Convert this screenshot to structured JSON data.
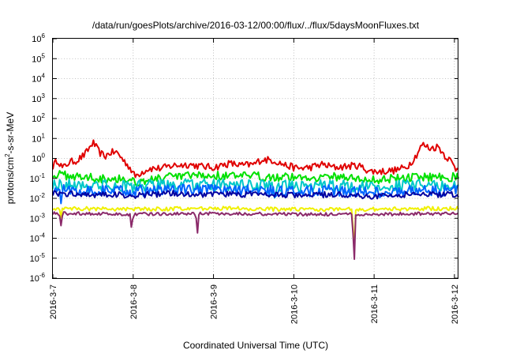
{
  "chart_data": {
    "type": "line",
    "title": "/data/run/goesPlots/archive/2016-03-12/00:00/flux/../flux/5daysMoonFluxes.txt",
    "xlabel": "Coordinated Universal Time (UTC)",
    "ylabel_parts": [
      "protons/cm",
      "2",
      "-s-sr-MeV"
    ],
    "y_scale": "log",
    "y_exp_range": [
      -6,
      6
    ],
    "y_ticks": [
      {
        "base": "10",
        "exp": "-6",
        "v": -6
      },
      {
        "base": "10",
        "exp": "-5",
        "v": -5
      },
      {
        "base": "10",
        "exp": "-4",
        "v": -4
      },
      {
        "base": "10",
        "exp": "-3",
        "v": -3
      },
      {
        "base": "10",
        "exp": "-2",
        "v": -2
      },
      {
        "base": "10",
        "exp": "-1",
        "v": -1
      },
      {
        "base": "10",
        "exp": "0",
        "v": 0
      },
      {
        "base": "10",
        "exp": "1",
        "v": 1
      },
      {
        "base": "10",
        "exp": "2",
        "v": 2
      },
      {
        "base": "10",
        "exp": "3",
        "v": 3
      },
      {
        "base": "10",
        "exp": "4",
        "v": 4
      },
      {
        "base": "10",
        "exp": "5",
        "v": 5
      },
      {
        "base": "10",
        "exp": "6",
        "v": 6
      }
    ],
    "x_ticks": [
      {
        "label": "2016-3-7",
        "day": 0
      },
      {
        "label": "2016-3-8",
        "day": 1
      },
      {
        "label": "2016-3-9",
        "day": 2
      },
      {
        "label": "2016-3-10",
        "day": 3
      },
      {
        "label": "2016-3-11",
        "day": 4
      },
      {
        "label": "2016-3-12",
        "day": 5
      }
    ],
    "x_range_days": [
      0,
      5.05
    ],
    "grid": true,
    "series": [
      {
        "color": "#e00000",
        "stroke": 2,
        "anchors": [
          [
            0,
            -0.4
          ],
          [
            0.06,
            -0.05
          ],
          [
            0.12,
            -0.5
          ],
          [
            0.2,
            -0.2
          ],
          [
            0.3,
            -0.1
          ],
          [
            0.4,
            0.2
          ],
          [
            0.5,
            0.8
          ],
          [
            0.58,
            0.3
          ],
          [
            0.65,
            0.1
          ],
          [
            0.72,
            0.3
          ],
          [
            0.8,
            0.3
          ],
          [
            0.88,
            -0.1
          ],
          [
            0.95,
            -0.4
          ],
          [
            1.02,
            -0.9
          ],
          [
            1.1,
            -0.7
          ],
          [
            1.2,
            -0.5
          ],
          [
            1.35,
            -0.5
          ],
          [
            1.5,
            -0.35
          ],
          [
            1.7,
            -0.3
          ],
          [
            1.85,
            -0.4
          ],
          [
            2.0,
            -0.45
          ],
          [
            2.2,
            -0.25
          ],
          [
            2.35,
            -0.35
          ],
          [
            2.5,
            -0.3
          ],
          [
            2.6,
            -0.05
          ],
          [
            2.75,
            -0.1
          ],
          [
            2.9,
            -0.35
          ],
          [
            3.05,
            -0.5
          ],
          [
            3.2,
            -0.45
          ],
          [
            3.35,
            -0.3
          ],
          [
            3.5,
            -0.45
          ],
          [
            3.65,
            -0.4
          ],
          [
            3.8,
            -0.35
          ],
          [
            3.95,
            -0.65
          ],
          [
            4.1,
            -0.65
          ],
          [
            4.25,
            -0.6
          ],
          [
            4.4,
            -0.45
          ],
          [
            4.5,
            0.0
          ],
          [
            4.6,
            0.7
          ],
          [
            4.7,
            0.5
          ],
          [
            4.8,
            0.6
          ],
          [
            4.88,
            0.15
          ],
          [
            4.95,
            -0.1
          ],
          [
            5.02,
            -0.55
          ],
          [
            5.05,
            -0.4
          ]
        ],
        "noise": 0.18,
        "dips": []
      },
      {
        "color": "#00e000",
        "stroke": 2,
        "anchors": [
          [
            0,
            -0.8
          ],
          [
            0.3,
            -0.9
          ],
          [
            0.6,
            -1.0
          ],
          [
            0.9,
            -1.0
          ],
          [
            1.05,
            -1.2
          ],
          [
            1.3,
            -1.0
          ],
          [
            1.6,
            -0.9
          ],
          [
            2.0,
            -0.85
          ],
          [
            2.4,
            -0.9
          ],
          [
            2.7,
            -0.9
          ],
          [
            3.0,
            -0.95
          ],
          [
            3.3,
            -0.95
          ],
          [
            3.6,
            -0.9
          ],
          [
            3.9,
            -1.1
          ],
          [
            4.2,
            -1.0
          ],
          [
            4.5,
            -0.95
          ],
          [
            4.8,
            -0.9
          ],
          [
            5.05,
            -0.95
          ]
        ],
        "noise": 0.22,
        "dips": []
      },
      {
        "color": "#00c8c8",
        "stroke": 2,
        "anchors": [
          [
            0,
            -1.3
          ],
          [
            0.5,
            -1.35
          ],
          [
            1.0,
            -1.4
          ],
          [
            1.5,
            -1.3
          ],
          [
            2.0,
            -1.35
          ],
          [
            2.5,
            -1.35
          ],
          [
            3.0,
            -1.4
          ],
          [
            3.5,
            -1.35
          ],
          [
            4.0,
            -1.45
          ],
          [
            4.5,
            -1.35
          ],
          [
            5.05,
            -1.35
          ]
        ],
        "noise": 0.3,
        "dips": [
          [
            2.76,
            -2.0
          ]
        ]
      },
      {
        "color": "#0064ff",
        "stroke": 2,
        "anchors": [
          [
            0,
            -1.55
          ],
          [
            0.5,
            -1.6
          ],
          [
            1.0,
            -1.65
          ],
          [
            1.5,
            -1.55
          ],
          [
            2.0,
            -1.6
          ],
          [
            2.5,
            -1.6
          ],
          [
            3.0,
            -1.65
          ],
          [
            3.5,
            -1.6
          ],
          [
            4.0,
            -1.7
          ],
          [
            4.5,
            -1.6
          ],
          [
            5.05,
            -1.6
          ]
        ],
        "noise": 0.28,
        "dips": [
          [
            0.1,
            -2.3
          ],
          [
            2.77,
            -2.2
          ]
        ]
      },
      {
        "color": "#0000a0",
        "stroke": 2,
        "anchors": [
          [
            0,
            -1.75
          ],
          [
            0.5,
            -1.8
          ],
          [
            1.0,
            -1.85
          ],
          [
            1.5,
            -1.75
          ],
          [
            2.0,
            -1.8
          ],
          [
            2.5,
            -1.8
          ],
          [
            3.0,
            -1.85
          ],
          [
            3.5,
            -1.8
          ],
          [
            4.0,
            -1.9
          ],
          [
            4.5,
            -1.8
          ],
          [
            5.05,
            -1.8
          ]
        ],
        "noise": 0.15,
        "dips": []
      },
      {
        "color": "#f0f000",
        "stroke": 2,
        "anchors": [
          [
            0,
            -2.5
          ],
          [
            1.0,
            -2.55
          ],
          [
            2.0,
            -2.5
          ],
          [
            3.0,
            -2.55
          ],
          [
            3.7,
            -2.55
          ],
          [
            4.0,
            -2.55
          ],
          [
            5.05,
            -2.5
          ]
        ],
        "noise": 0.1,
        "dips": [
          [
            0.1,
            -3.0
          ],
          [
            3.75,
            -5.0
          ]
        ]
      },
      {
        "color": "#8b2a6a",
        "stroke": 2,
        "anchors": [
          [
            0,
            -2.75
          ],
          [
            1.0,
            -2.8
          ],
          [
            2.0,
            -2.75
          ],
          [
            3.0,
            -2.8
          ],
          [
            3.7,
            -2.8
          ],
          [
            4.0,
            -2.8
          ],
          [
            5.05,
            -2.75
          ]
        ],
        "noise": 0.08,
        "dips": [
          [
            0.1,
            -3.4
          ],
          [
            0.98,
            -3.6
          ],
          [
            1.8,
            -3.8
          ],
          [
            3.75,
            -5.6
          ]
        ]
      }
    ]
  }
}
